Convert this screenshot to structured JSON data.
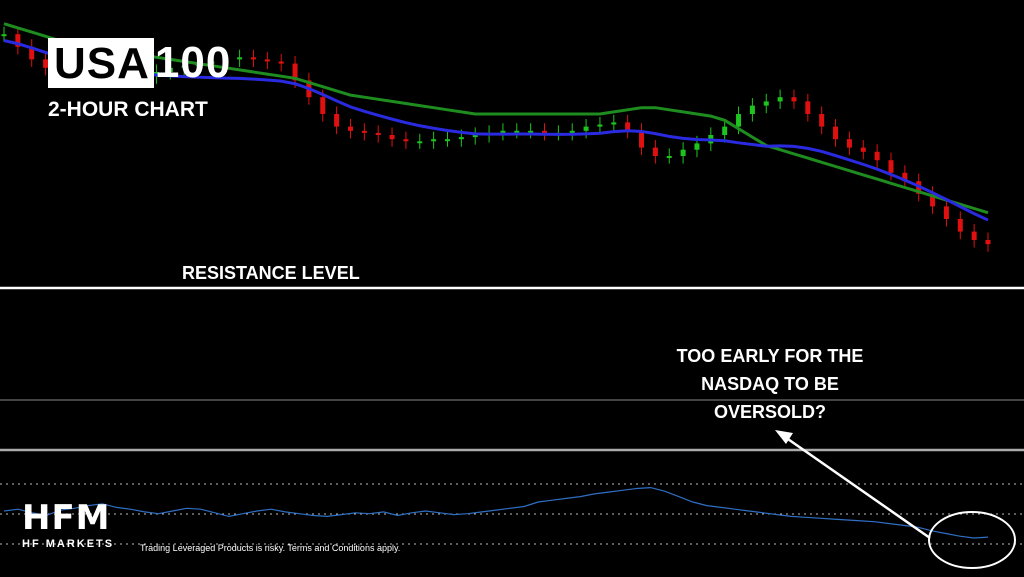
{
  "title": {
    "highlight": "USA",
    "rest": "100",
    "subtitle": "2-HOUR CHART"
  },
  "annotations": {
    "resistance_label": "RESISTANCE LEVEL",
    "question_lines": [
      "TOO EARLY FOR THE",
      "NASDAQ TO BE",
      "OVERSOLD?"
    ]
  },
  "branding": {
    "logo": "HFM",
    "logo_sub": "HF MARKETS",
    "disclaimer": "Trading Leveraged Products is risky. Terms and Conditions apply."
  },
  "colors": {
    "bull": "#1ec41e",
    "bear": "#e01010",
    "ma_fast": "#2a2ae0",
    "ma_slow": "#1e8c1e",
    "indicator": "#2f6fc4",
    "logo_accent": "#e0262b"
  },
  "chart_data": {
    "type": "line",
    "series": [
      {
        "values": [
          99,
          96,
          93,
          91,
          90,
          89,
          89.5,
          89,
          88,
          88.5,
          89,
          90,
          91,
          91.5,
          92,
          92.5,
          93,
          93.5,
          93,
          92.5,
          92,
          88,
          84,
          80,
          77,
          76,
          75.5,
          75,
          74,
          73.5,
          73.5,
          74,
          74,
          74.5,
          75,
          75.5,
          76,
          76,
          76,
          75.5,
          75.5,
          76,
          77,
          77.5,
          78,
          76,
          72,
          70,
          70,
          71.5,
          73,
          75,
          77,
          80,
          82,
          83,
          84,
          83,
          80,
          77,
          74,
          72,
          71,
          69,
          66,
          64,
          61,
          58,
          55,
          52,
          50,
          49
        ]
      },
      {
        "values": [
          99,
          98,
          97,
          96,
          95,
          94,
          93.5,
          93,
          92.5,
          92,
          91.5,
          91,
          90.5,
          90,
          89.5,
          89,
          88.5,
          88,
          87.5,
          87,
          86.5,
          86,
          85,
          84,
          83,
          82,
          81.5,
          81,
          80.5,
          80,
          79.5,
          79,
          78.5,
          78,
          77.5,
          77.5,
          77.5,
          77.5,
          77.5,
          77.5,
          77.5,
          77.5,
          77.5,
          77.5,
          78,
          78.5,
          79,
          79,
          78.5,
          78,
          77.5,
          77,
          76,
          74,
          72,
          70,
          69,
          68,
          67,
          66,
          65,
          64,
          63,
          62,
          61,
          60,
          59,
          58,
          57,
          56,
          55,
          54
        ]
      },
      {
        "values": [
          60,
          62,
          58,
          55,
          61,
          63,
          66,
          68,
          64,
          62,
          59,
          57,
          60,
          63,
          62,
          58,
          54,
          57,
          60,
          62,
          59,
          57,
          55,
          54,
          56,
          58,
          57,
          59,
          55,
          58,
          60,
          58,
          56,
          57,
          59,
          61,
          63,
          65,
          70,
          72,
          74,
          76,
          79,
          81,
          83,
          85,
          86,
          82,
          76,
          70,
          66,
          64,
          62,
          60,
          58,
          56,
          54,
          53,
          52,
          51,
          50,
          49,
          48,
          46,
          44,
          42,
          38,
          35,
          32,
          30,
          31
        ]
      }
    ]
  }
}
